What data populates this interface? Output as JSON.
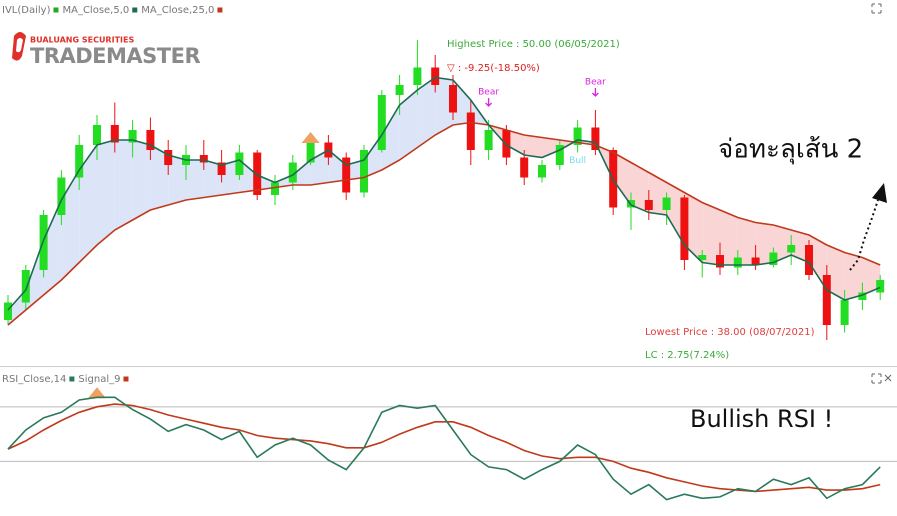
{
  "logo": {
    "top": "BUALUANG SECURITIES",
    "name": "TRADEMASTER"
  },
  "chart_data": [
    {
      "type": "candlestick",
      "ylim": [
        37,
        51.5
      ],
      "fill_up": "#dbe5f7",
      "fill_down": "#f9d5d5",
      "series": [
        {
          "name": "IVL(Daily)",
          "up_color": "#22dd22",
          "down_color": "#ee1111",
          "legend_color": "#22aa22",
          "open": [
            38.8,
            39.5,
            40.8,
            43.0,
            44.5,
            45.8,
            46.6,
            45.9,
            46.4,
            45.6,
            45.0,
            45.4,
            45.1,
            44.6,
            45.5,
            43.8,
            44.3,
            45.1,
            45.9,
            45.3,
            43.9,
            45.6,
            47.8,
            48.2,
            48.9,
            48.2,
            47.1,
            45.6,
            46.4,
            45.3,
            44.5,
            45.0,
            45.8,
            46.5,
            45.6,
            43.3,
            43.6,
            43.2,
            43.7,
            41.2,
            41.4,
            40.9,
            41.3,
            41.0,
            41.5,
            41.8,
            40.6,
            38.6,
            39.6,
            39.9
          ],
          "high": [
            39.8,
            41.0,
            43.2,
            44.8,
            46.2,
            47.0,
            47.5,
            46.8,
            46.9,
            46.0,
            45.8,
            46.0,
            45.6,
            45.8,
            45.6,
            44.6,
            45.4,
            46.2,
            46.2,
            45.5,
            45.8,
            48.0,
            48.6,
            50.0,
            49.4,
            48.6,
            47.6,
            46.8,
            46.6,
            45.6,
            45.2,
            46.0,
            46.8,
            47.2,
            45.7,
            43.9,
            44.0,
            43.9,
            43.8,
            41.6,
            41.9,
            41.6,
            41.8,
            41.7,
            42.2,
            42.0,
            41.0,
            40.0,
            40.3,
            40.6
          ],
          "low": [
            38.6,
            39.2,
            40.5,
            42.6,
            44.0,
            45.2,
            45.5,
            45.3,
            45.2,
            44.6,
            44.4,
            44.8,
            44.3,
            44.4,
            43.6,
            43.4,
            44.0,
            45.0,
            45.0,
            43.6,
            43.7,
            45.5,
            47.0,
            47.8,
            47.9,
            46.8,
            45.0,
            45.2,
            45.0,
            44.2,
            44.3,
            44.8,
            45.5,
            45.4,
            43.0,
            42.4,
            42.8,
            42.6,
            40.8,
            40.5,
            40.6,
            40.6,
            40.8,
            40.9,
            41.0,
            40.4,
            38.0,
            38.3,
            39.2,
            39.6
          ],
          "close": [
            39.5,
            40.8,
            43.0,
            44.5,
            45.8,
            46.6,
            45.9,
            46.4,
            45.6,
            45.0,
            45.4,
            45.1,
            44.6,
            45.5,
            43.8,
            44.3,
            45.1,
            45.9,
            45.3,
            43.9,
            45.6,
            47.8,
            48.2,
            48.9,
            48.2,
            47.1,
            45.6,
            46.4,
            45.3,
            44.5,
            45.0,
            45.8,
            46.5,
            45.6,
            43.3,
            43.6,
            43.2,
            43.7,
            41.2,
            41.4,
            40.9,
            41.3,
            41.0,
            41.5,
            41.8,
            40.6,
            38.6,
            39.6,
            39.9,
            40.4
          ]
        },
        {
          "name": "MA_Close,5,0",
          "color": "#1d6b52",
          "values": [
            39.2,
            40.0,
            42.0,
            43.6,
            44.8,
            45.8,
            46.0,
            46.0,
            45.8,
            45.4,
            45.2,
            45.2,
            45.0,
            45.2,
            44.6,
            44.3,
            44.6,
            45.2,
            45.6,
            45.0,
            45.2,
            46.2,
            47.4,
            48.0,
            48.5,
            48.4,
            47.6,
            46.6,
            45.8,
            45.4,
            45.3,
            45.6,
            46.0,
            45.9,
            44.4,
            43.4,
            43.1,
            43.0,
            41.8,
            41.1,
            41.0,
            41.0,
            41.0,
            41.1,
            41.4,
            41.1,
            40.0,
            39.6,
            39.8,
            40.1
          ]
        },
        {
          "name": "MA_Close,25,0",
          "color": "#c0391b",
          "values": [
            38.6,
            39.2,
            39.8,
            40.4,
            41.1,
            41.8,
            42.4,
            42.8,
            43.2,
            43.4,
            43.6,
            43.7,
            43.8,
            43.9,
            44.0,
            44.1,
            44.2,
            44.2,
            44.3,
            44.4,
            44.5,
            44.8,
            45.2,
            45.7,
            46.2,
            46.6,
            46.7,
            46.6,
            46.4,
            46.2,
            46.1,
            46.0,
            45.9,
            45.8,
            45.5,
            45.1,
            44.7,
            44.3,
            43.9,
            43.5,
            43.2,
            42.9,
            42.7,
            42.6,
            42.4,
            42.2,
            41.8,
            41.5,
            41.3,
            41.0
          ]
        }
      ],
      "signals": [
        {
          "index": 27,
          "label": "Bear",
          "color": "#dd22dd"
        },
        {
          "index": 33,
          "label": "Bear",
          "color": "#dd22dd"
        },
        {
          "index": 32,
          "label": "Bull",
          "color": "#7fd8f0"
        }
      ],
      "triangles": [
        {
          "index": 17,
          "color": "#f0a060"
        }
      ],
      "annotations": {
        "highest": "Highest Price : 50.00 (06/05/2021)",
        "change": "▽ : -9.25(-18.50%)",
        "lowest": "Lowest Price : 38.00 (08/07/2021)",
        "lc": "LC : 2.75(7.24%)",
        "note": "จ่อทะลุเส้น 2"
      }
    },
    {
      "type": "line",
      "ylim": [
        -10,
        86
      ],
      "levels": [
        70,
        30
      ],
      "series": [
        {
          "name": "RSI_Close,14",
          "color": "#2a7a5a",
          "values": [
            39,
            53,
            62,
            66,
            75,
            77,
            77,
            68,
            61,
            52,
            57,
            53,
            46,
            52,
            33,
            42,
            47,
            42,
            31,
            24,
            40,
            66,
            71,
            69,
            71,
            53,
            35,
            26,
            24,
            17,
            24,
            30,
            42,
            35,
            17,
            6,
            13,
            2,
            6,
            3,
            4,
            10,
            8,
            17,
            13,
            18,
            3,
            10,
            13,
            26
          ]
        },
        {
          "name": "Signal_9",
          "color": "#c0391b",
          "values": [
            39,
            45,
            53,
            60,
            66,
            70,
            72,
            71,
            68,
            64,
            61,
            58,
            55,
            53,
            49,
            47,
            46,
            45,
            43,
            40,
            40,
            44,
            50,
            55,
            59,
            59,
            55,
            49,
            44,
            38,
            34,
            32,
            33,
            33,
            30,
            25,
            22,
            18,
            15,
            12,
            10,
            9,
            8,
            9,
            10,
            11,
            9,
            9,
            10,
            13
          ]
        }
      ],
      "triangles": [
        {
          "index": 5,
          "color": "#f0a060"
        }
      ],
      "annotations": {
        "note": "Bullish RSI !"
      }
    }
  ]
}
